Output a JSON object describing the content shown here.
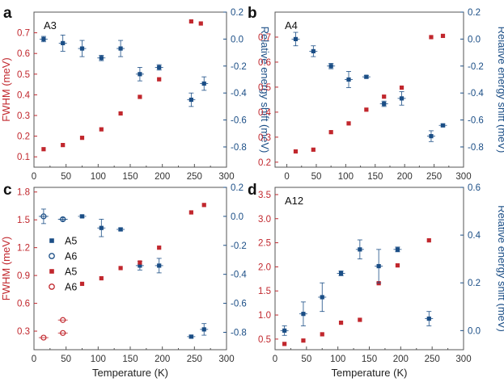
{
  "colors": {
    "red": "#c1272d",
    "blue": "#1b4e86",
    "axis": "#555555"
  },
  "chart_data": [
    {
      "panel": "a",
      "type": "scatter",
      "inset_label": "A3",
      "xlabel": "",
      "ylabel_left": "FWHM (meV)",
      "ylabel_right": "Relative energy shift (meV)",
      "xlim": [
        0,
        300
      ],
      "ylim_left": [
        0.05,
        0.8
      ],
      "ylim_right": [
        -0.95,
        0.2
      ],
      "x_ticks": [
        "0",
        "50",
        "100",
        "150",
        "200",
        "250",
        "300"
      ],
      "left_ticks": [
        0.1,
        0.2,
        0.3,
        0.4,
        0.5,
        0.6,
        0.7
      ],
      "left_tick_labels": [
        "0.1",
        "0.2",
        "0.3",
        "0.4",
        "0.5",
        "0.6",
        "0.7"
      ],
      "right_ticks": [
        0.2,
        0.0,
        -0.2,
        -0.4,
        -0.6,
        -0.8
      ],
      "right_tick_labels": [
        "0.2",
        "0.0",
        "-0.2",
        "-0.4",
        "-0.6",
        "-0.8"
      ],
      "series": [
        {
          "axis": "left",
          "color": "red",
          "marker": "filled",
          "points": [
            [
              15,
              0.137
            ],
            [
              45,
              0.157
            ],
            [
              75,
              0.192
            ],
            [
              105,
              0.233
            ],
            [
              135,
              0.31
            ],
            [
              165,
              0.39
            ],
            [
              195,
              0.475
            ],
            [
              245,
              0.755
            ],
            [
              260,
              0.745
            ]
          ]
        },
        {
          "axis": "right",
          "color": "blue",
          "marker": "filled",
          "points": [
            [
              15,
              0.0,
              0.02
            ],
            [
              45,
              -0.03,
              0.06
            ],
            [
              75,
              -0.07,
              0.06
            ],
            [
              105,
              -0.14,
              0.02
            ],
            [
              135,
              -0.07,
              0.06
            ],
            [
              165,
              -0.26,
              0.05
            ],
            [
              195,
              -0.21,
              0.02
            ],
            [
              245,
              -0.45,
              0.05
            ],
            [
              265,
              -0.33,
              0.05
            ]
          ]
        }
      ]
    },
    {
      "panel": "b",
      "type": "scatter",
      "inset_label": "A4",
      "xlabel": "",
      "ylabel_left": "",
      "ylabel_right": "Relative energy shift (meV)",
      "xlim": [
        -20,
        300
      ],
      "ylim_left": [
        0.18,
        0.8
      ],
      "ylim_right": [
        -0.95,
        0.2
      ],
      "x_ticks": [
        "0",
        "50",
        "100",
        "150",
        "200",
        "250",
        "300"
      ],
      "left_ticks": [
        0.2,
        0.3,
        0.4,
        0.5,
        0.6,
        0.7
      ],
      "left_tick_labels": [
        "0.2",
        "0.3",
        "0.4",
        "0.5",
        "0.6",
        "0.7"
      ],
      "right_ticks": [
        0.2,
        0.0,
        -0.2,
        -0.4,
        -0.6,
        -0.8
      ],
      "right_tick_labels": [
        "0.2",
        "0.0",
        "-0.2",
        "-0.4",
        "-0.6",
        "-0.8"
      ],
      "series": [
        {
          "axis": "left",
          "color": "red",
          "marker": "filled",
          "points": [
            [
              15,
              0.243
            ],
            [
              45,
              0.25
            ],
            [
              75,
              0.32
            ],
            [
              105,
              0.355
            ],
            [
              135,
              0.41
            ],
            [
              165,
              0.462
            ],
            [
              195,
              0.498
            ],
            [
              245,
              0.7
            ],
            [
              265,
              0.705
            ]
          ]
        },
        {
          "axis": "right",
          "color": "blue",
          "marker": "filled",
          "points": [
            [
              15,
              0.0,
              0.05
            ],
            [
              45,
              -0.09,
              0.04
            ],
            [
              75,
              -0.2,
              0.02
            ],
            [
              105,
              -0.3,
              0.06
            ],
            [
              135,
              -0.28,
              0.01
            ],
            [
              165,
              -0.48,
              0.02
            ],
            [
              195,
              -0.44,
              0.05
            ],
            [
              245,
              -0.72,
              0.04
            ],
            [
              265,
              -0.64,
              0.01
            ]
          ]
        }
      ]
    },
    {
      "panel": "c",
      "type": "scatter",
      "inset_label": "",
      "xlabel": "Temperature (K)",
      "ylabel_left": "FWHM (meV)",
      "ylabel_right": "",
      "xlim": [
        0,
        300
      ],
      "ylim_left": [
        0.1,
        1.85
      ],
      "ylim_right": [
        -0.92,
        0.2
      ],
      "x_ticks": [
        "0",
        "50",
        "100",
        "150",
        "200",
        "250",
        "300"
      ],
      "left_ticks": [
        0.3,
        0.6,
        0.9,
        1.2,
        1.5,
        1.8
      ],
      "left_tick_labels": [
        "0.3",
        "0.6",
        "0.9",
        "1.2",
        "1.5",
        "1.8"
      ],
      "right_ticks": [
        0.2,
        0.0,
        -0.2,
        -0.4,
        -0.6,
        -0.8
      ],
      "right_tick_labels": [
        "0.2",
        "0.0",
        "-0.2",
        "-0.4",
        "-0.6",
        "-0.8"
      ],
      "legend": [
        {
          "label": "A5",
          "color": "blue",
          "marker": "filled"
        },
        {
          "label": "A6",
          "color": "blue",
          "marker": "open"
        },
        {
          "label": "A5",
          "color": "red",
          "marker": "filled"
        },
        {
          "label": "A6",
          "color": "red",
          "marker": "open"
        }
      ],
      "series": [
        {
          "name": "A5",
          "axis": "right",
          "color": "blue",
          "marker": "filled",
          "points": [
            [
              75,
              0.0,
              0.01
            ],
            [
              105,
              -0.08,
              0.06
            ],
            [
              135,
              -0.09,
              0.01
            ],
            [
              165,
              -0.34,
              0.03
            ],
            [
              195,
              -0.34,
              0.05
            ],
            [
              245,
              -0.83,
              0.01
            ],
            [
              265,
              -0.78,
              0.04
            ]
          ]
        },
        {
          "name": "A6",
          "axis": "right",
          "color": "blue",
          "marker": "open",
          "points": [
            [
              15,
              0.0,
              0.05
            ],
            [
              45,
              -0.02,
              0.01
            ]
          ]
        },
        {
          "name": "A5",
          "axis": "left",
          "color": "red",
          "marker": "filled",
          "points": [
            [
              75,
              0.81
            ],
            [
              105,
              0.87
            ],
            [
              135,
              0.98
            ],
            [
              165,
              1.04
            ],
            [
              195,
              1.2
            ],
            [
              245,
              1.58
            ],
            [
              265,
              1.66
            ]
          ]
        },
        {
          "name": "A6",
          "axis": "left",
          "color": "red",
          "marker": "open",
          "points": [
            [
              15,
              0.23
            ],
            [
              45,
              0.42
            ],
            [
              45,
              0.28
            ]
          ]
        }
      ]
    },
    {
      "panel": "d",
      "type": "scatter",
      "inset_label": "A12",
      "xlabel": "Temperature (K)",
      "ylabel_left": "",
      "ylabel_right": "Relative energy shift (meV)",
      "xlim": [
        0,
        300
      ],
      "ylim_left": [
        0.28,
        3.65
      ],
      "ylim_right": [
        -0.08,
        0.6
      ],
      "x_ticks": [
        "0",
        "50",
        "100",
        "150",
        "200",
        "250",
        "300"
      ],
      "left_ticks": [
        0.5,
        1.0,
        1.5,
        2.0,
        2.5,
        3.0,
        3.5
      ],
      "left_tick_labels": [
        "0.5",
        "1.0",
        "1.5",
        "2.0",
        "2.5",
        "3.0",
        "3.5"
      ],
      "right_ticks": [
        0.6,
        0.4,
        0.2,
        0.0
      ],
      "right_tick_labels": [
        "0.6",
        "0.4",
        "0.2",
        "0.0"
      ],
      "series": [
        {
          "axis": "left",
          "color": "red",
          "marker": "filled",
          "points": [
            [
              15,
              0.4
            ],
            [
              45,
              0.47
            ],
            [
              75,
              0.6
            ],
            [
              105,
              0.84
            ],
            [
              135,
              0.9
            ],
            [
              165,
              1.66
            ],
            [
              195,
              2.03
            ],
            [
              245,
              2.55
            ]
          ]
        },
        {
          "axis": "right",
          "color": "blue",
          "marker": "filled",
          "points": [
            [
              15,
              0.0,
              0.02
            ],
            [
              45,
              0.07,
              0.05
            ],
            [
              75,
              0.14,
              0.06
            ],
            [
              105,
              0.24,
              0.01
            ],
            [
              135,
              0.34,
              0.04
            ],
            [
              165,
              0.27,
              0.07
            ],
            [
              195,
              0.34,
              0.01
            ],
            [
              245,
              0.05,
              0.03
            ]
          ]
        }
      ]
    }
  ]
}
